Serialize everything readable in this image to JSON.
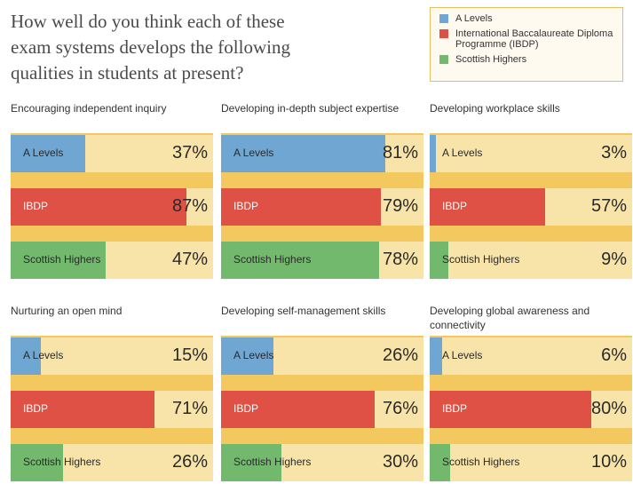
{
  "title": "How well do you think each of these\nexam systems develops the following\nqualities in students at present?",
  "legend": [
    {
      "label": "A Levels",
      "color": "#6fa6d2"
    },
    {
      "label": "International Baccalaureate Diploma Programme (IBDP)",
      "color": "#de5144"
    },
    {
      "label": "Scottish Highers",
      "color": "#72b96d"
    }
  ],
  "chart_data": [
    {
      "type": "bar",
      "title": "Encouraging independent inquiry",
      "categories": [
        "A Levels",
        "IBDP",
        "Scottish Highers"
      ],
      "values": [
        37,
        87,
        47
      ],
      "value_labels": [
        "37%",
        "87%",
        "47%"
      ],
      "xlim": [
        0,
        100
      ]
    },
    {
      "type": "bar",
      "title": "Developing in-depth subject expertise",
      "categories": [
        "A Levels",
        "IBDP",
        "Scottish Highers"
      ],
      "values": [
        81,
        79,
        78
      ],
      "value_labels": [
        "81%",
        "79%",
        "78%"
      ],
      "xlim": [
        0,
        100
      ]
    },
    {
      "type": "bar",
      "title": "Developing workplace skills",
      "categories": [
        "A Levels",
        "IBDP",
        "Scottish Highers"
      ],
      "values": [
        3,
        57,
        9
      ],
      "value_labels": [
        "3%",
        "57%",
        "9%"
      ],
      "xlim": [
        0,
        100
      ]
    },
    {
      "type": "bar",
      "title": "Nurturing an open mind",
      "categories": [
        "A Levels",
        "IBDP",
        "Scottish Highers"
      ],
      "values": [
        15,
        71,
        26
      ],
      "value_labels": [
        "15%",
        "71%",
        "26%"
      ],
      "xlim": [
        0,
        100
      ]
    },
    {
      "type": "bar",
      "title": "Developing self-management skills",
      "categories": [
        "A Levels",
        "IBDP",
        "Scottish Highers"
      ],
      "values": [
        26,
        76,
        30
      ],
      "value_labels": [
        "26%",
        "76%",
        "30%"
      ],
      "xlim": [
        0,
        100
      ]
    },
    {
      "type": "bar",
      "title": "Developing global awareness and connectivity",
      "categories": [
        "A Levels",
        "IBDP",
        "Scottish Highers"
      ],
      "values": [
        6,
        80,
        10
      ],
      "value_labels": [
        "6%",
        "80%",
        "10%"
      ],
      "xlim": [
        0,
        100
      ]
    }
  ]
}
